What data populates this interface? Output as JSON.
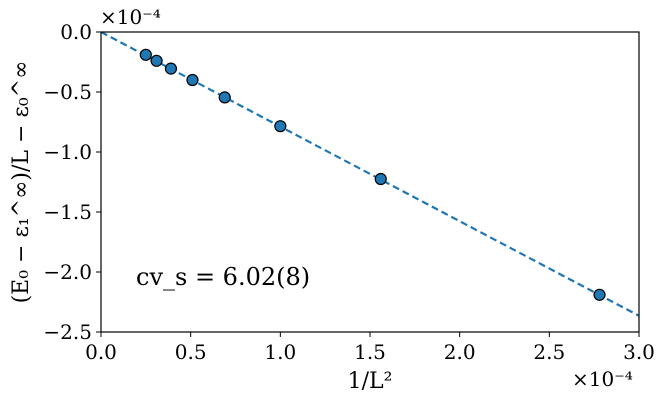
{
  "chart_data": {
    "type": "scatter",
    "title": "",
    "xlabel": "1/L²",
    "ylabel": "(E₀ − ε₁^∞)/L − ε₀^∞",
    "x_multiplier_label": "×10⁻⁴",
    "y_multiplier_label": "×10⁻⁴",
    "xlim": [
      0.0,
      3.0
    ],
    "ylim": [
      -2.5,
      0.0
    ],
    "x_scale_factor": 0.0001,
    "y_scale_factor": 0.0001,
    "grid": false,
    "xticks": [
      0.0,
      0.5,
      1.0,
      1.5,
      2.0,
      2.5,
      3.0
    ],
    "xtick_labels": [
      "0.0",
      "0.5",
      "1.0",
      "1.5",
      "2.0",
      "2.5",
      "3.0"
    ],
    "yticks": [
      0.0,
      -0.5,
      -1.0,
      -1.5,
      -2.0,
      -2.5
    ],
    "ytick_labels": [
      "0.0",
      "−0.5",
      "−1.0",
      "−1.5",
      "−2.0",
      "−2.5"
    ],
    "series": [
      {
        "kind": "points",
        "marker_color": "#1f77b4",
        "x": [
          0.25,
          0.31,
          0.39,
          0.51,
          0.69,
          1.0,
          1.56,
          2.78
        ],
        "y": [
          -0.19,
          -0.24,
          -0.305,
          -0.4,
          -0.545,
          -0.785,
          -1.225,
          -2.19
        ]
      },
      {
        "kind": "fit-line",
        "line_color": "#1f77b4",
        "line_style": "dashed",
        "x": [
          0.0,
          3.0
        ],
        "y": [
          0.0,
          -2.365
        ]
      }
    ],
    "annotation": "cv_s = 6.02(8)"
  }
}
